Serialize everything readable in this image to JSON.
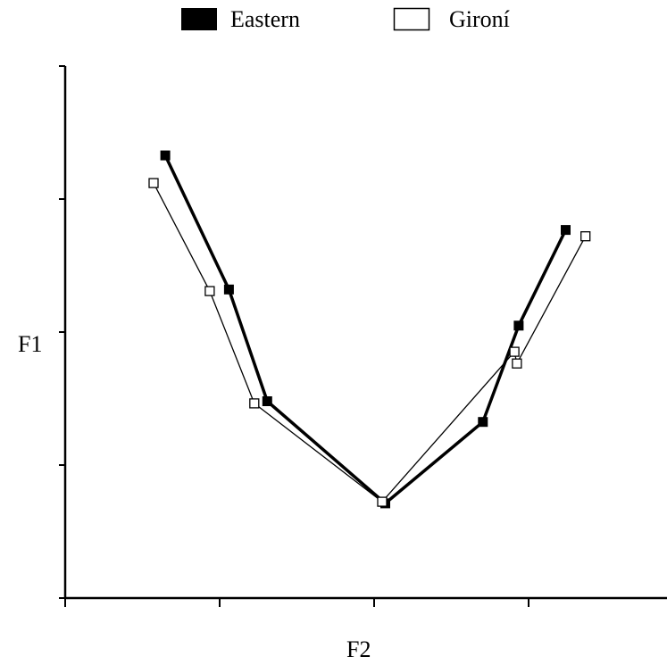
{
  "chart_data": {
    "type": "line",
    "title": "",
    "xlabel": "F2",
    "ylabel": "F1",
    "xlim": [
      0,
      100
    ],
    "ylim": [
      0,
      100
    ],
    "x_ticks": [
      0,
      25,
      50,
      75,
      100
    ],
    "y_ticks": [
      0,
      25,
      50,
      75,
      100
    ],
    "tick_labels_shown": false,
    "grid": false,
    "legend_position": "top",
    "series": [
      {
        "name": "Eastern",
        "marker": "filled-square",
        "line_weight": "heavy",
        "color": "#000000",
        "points": [
          {
            "x": 16.2,
            "y": 83.2
          },
          {
            "x": 26.5,
            "y": 58.0
          },
          {
            "x": 32.7,
            "y": 37.0
          },
          {
            "x": 51.8,
            "y": 17.8
          },
          {
            "x": 67.6,
            "y": 33.1
          },
          {
            "x": 73.4,
            "y": 51.2
          },
          {
            "x": 81.0,
            "y": 69.2
          }
        ]
      },
      {
        "name": "Gironí",
        "marker": "open-square",
        "line_weight": "light",
        "color": "#000000",
        "points": [
          {
            "x": 14.3,
            "y": 78.0
          },
          {
            "x": 23.4,
            "y": 57.7
          },
          {
            "x": 30.6,
            "y": 36.6
          },
          {
            "x": 51.3,
            "y": 18.1
          },
          {
            "x": 72.7,
            "y": 46.3
          },
          {
            "x": 73.1,
            "y": 44.1
          },
          {
            "x": 84.2,
            "y": 68.0
          }
        ]
      }
    ]
  }
}
